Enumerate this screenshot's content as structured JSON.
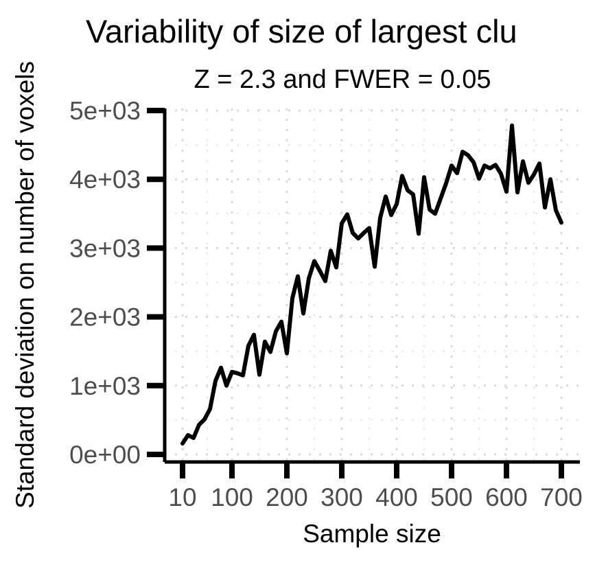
{
  "chart_data": {
    "type": "line",
    "title": "Variability of size of largest clu",
    "subtitle": "Z = 2.3 and FWER = 0.05",
    "xlabel": "Sample size",
    "ylabel": "Standard deviation on number of voxels",
    "xlim": [
      10,
      700
    ],
    "ylim": [
      0,
      5000
    ],
    "x_ticks": [
      10,
      100,
      200,
      300,
      400,
      500,
      600,
      700
    ],
    "x_tick_labels": [
      "10",
      "100",
      "200",
      "300",
      "400",
      "500",
      "600",
      "700"
    ],
    "y_ticks": [
      0,
      1000,
      2000,
      3000,
      4000,
      5000
    ],
    "y_tick_labels": [
      "0e+00",
      "1e+03",
      "2e+03",
      "3e+03",
      "4e+03",
      "5e+03"
    ],
    "grid": true,
    "legend": "none",
    "colors": {
      "line": "#000000",
      "axis": "#000000",
      "tick_label": "#4d4d4d",
      "grid": "#d9d9d9"
    },
    "series": [
      {
        "x": [
          10,
          20,
          30,
          40,
          50,
          60,
          70,
          80,
          90,
          100,
          110,
          120,
          130,
          140,
          150,
          160,
          170,
          180,
          190,
          200,
          210,
          220,
          230,
          240,
          250,
          260,
          270,
          280,
          290,
          300,
          310,
          320,
          330,
          340,
          350,
          360,
          370,
          380,
          390,
          400,
          410,
          420,
          430,
          440,
          450,
          460,
          470,
          480,
          490,
          500,
          510,
          520,
          530,
          540,
          550,
          560,
          570,
          580,
          590,
          600,
          610,
          620,
          630,
          640,
          650,
          660,
          670,
          680,
          690,
          700
        ],
        "values": [
          160,
          280,
          240,
          430,
          510,
          660,
          1070,
          1260,
          1000,
          1200,
          1180,
          1150,
          1580,
          1740,
          1160,
          1640,
          1490,
          1790,
          1930,
          1470,
          2270,
          2590,
          2050,
          2560,
          2810,
          2670,
          2520,
          2960,
          2720,
          3360,
          3490,
          3220,
          3140,
          3220,
          3290,
          2730,
          3440,
          3750,
          3480,
          3640,
          4050,
          3840,
          3780,
          3210,
          4030,
          3560,
          3500,
          3720,
          3940,
          4200,
          4090,
          4400,
          4350,
          4250,
          4010,
          4200,
          4160,
          4210,
          4080,
          3820,
          4780,
          3810,
          4260,
          3950,
          4070,
          4230,
          3590,
          4000,
          3550,
          3370
        ]
      }
    ]
  }
}
